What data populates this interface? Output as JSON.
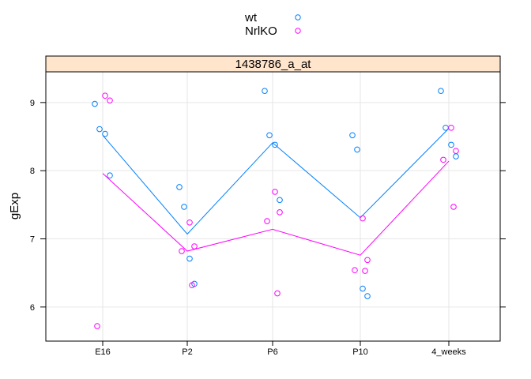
{
  "chart_data": {
    "type": "scatter",
    "title": "",
    "panel_title": "1438786_a_at",
    "xlabel": "",
    "ylabel": "gExp",
    "categories": [
      "E16",
      "P2",
      "P6",
      "P10",
      "4_weeks"
    ],
    "ylim": [
      5.5,
      9.45
    ],
    "yticks": [
      6,
      7,
      8,
      9
    ],
    "grid": true,
    "legend_position": "top",
    "series": [
      {
        "name": "wt",
        "color": "#0080ff",
        "points": [
          {
            "x": "E16",
            "y": 8.98
          },
          {
            "x": "E16",
            "y": 8.61
          },
          {
            "x": "E16",
            "y": 8.54
          },
          {
            "x": "E16",
            "y": 7.93
          },
          {
            "x": "P2",
            "y": 7.76
          },
          {
            "x": "P2",
            "y": 7.47
          },
          {
            "x": "P2",
            "y": 6.71
          },
          {
            "x": "P2",
            "y": 6.34
          },
          {
            "x": "P6",
            "y": 9.17
          },
          {
            "x": "P6",
            "y": 8.52
          },
          {
            "x": "P6",
            "y": 8.38
          },
          {
            "x": "P6",
            "y": 7.57
          },
          {
            "x": "P10",
            "y": 8.52
          },
          {
            "x": "P10",
            "y": 8.31
          },
          {
            "x": "P10",
            "y": 6.27
          },
          {
            "x": "P10",
            "y": 6.16
          },
          {
            "x": "4_weeks",
            "y": 9.17
          },
          {
            "x": "4_weeks",
            "y": 8.63
          },
          {
            "x": "4_weeks",
            "y": 8.38
          },
          {
            "x": "4_weeks",
            "y": 8.21
          }
        ],
        "mean_line": [
          8.52,
          7.07,
          8.41,
          7.31,
          8.62
        ]
      },
      {
        "name": "NrlKO",
        "color": "#ff00ff",
        "points": [
          {
            "x": "E16",
            "y": 9.1
          },
          {
            "x": "E16",
            "y": 9.03
          },
          {
            "x": "E16",
            "y": 5.72
          },
          {
            "x": "P2",
            "y": 7.24
          },
          {
            "x": "P2",
            "y": 6.89
          },
          {
            "x": "P2",
            "y": 6.82
          },
          {
            "x": "P2",
            "y": 6.32
          },
          {
            "x": "P6",
            "y": 7.69
          },
          {
            "x": "P6",
            "y": 7.39
          },
          {
            "x": "P6",
            "y": 7.26
          },
          {
            "x": "P6",
            "y": 6.2
          },
          {
            "x": "P10",
            "y": 7.3
          },
          {
            "x": "P10",
            "y": 6.69
          },
          {
            "x": "P10",
            "y": 6.54
          },
          {
            "x": "P10",
            "y": 6.53
          },
          {
            "x": "4_weeks",
            "y": 8.63
          },
          {
            "x": "4_weeks",
            "y": 8.29
          },
          {
            "x": "4_weeks",
            "y": 8.16
          },
          {
            "x": "4_weeks",
            "y": 7.47
          }
        ],
        "mean_line": [
          7.96,
          6.82,
          7.14,
          6.76,
          8.14
        ]
      }
    ]
  }
}
